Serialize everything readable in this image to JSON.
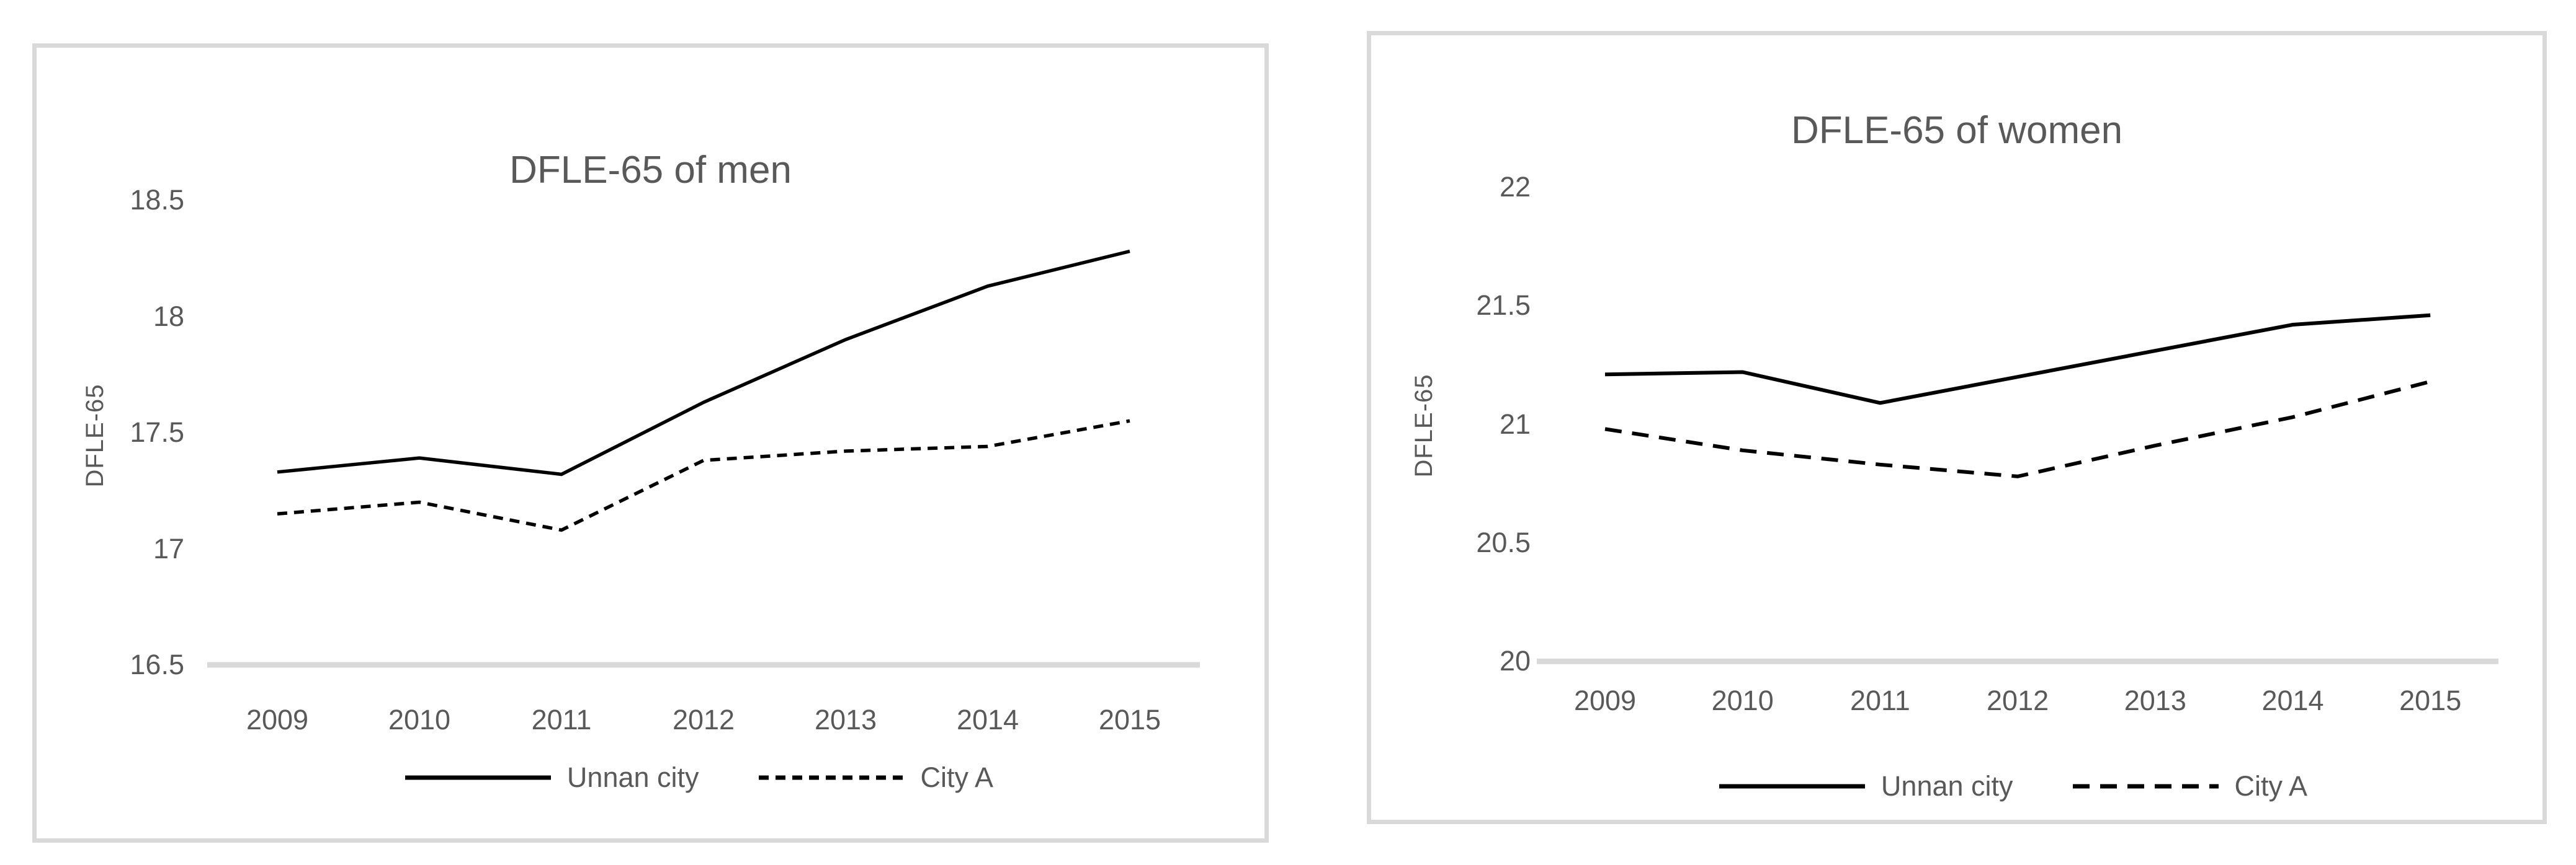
{
  "styles": {
    "background": "#ffffff",
    "line_color": "#000000",
    "text_color": "#595959",
    "border_color": "#d9d9d9",
    "baseline_color": "#d9d9d9"
  },
  "chart_data": [
    {
      "type": "line",
      "title": "DFLE-65 of men",
      "xlabel": "",
      "ylabel": "DFLE-65",
      "categories": [
        "2009",
        "2010",
        "2011",
        "2012",
        "2013",
        "2014",
        "2015"
      ],
      "series": [
        {
          "name": "Unnan city",
          "style": "solid",
          "values": [
            17.33,
            17.39,
            17.32,
            17.63,
            17.9,
            18.13,
            18.28
          ]
        },
        {
          "name": "City A",
          "style": "dashed",
          "values": [
            17.15,
            17.2,
            17.08,
            17.38,
            17.42,
            17.44,
            17.55
          ]
        }
      ],
      "ylim": [
        16.5,
        18.5
      ],
      "y_ticks": [
        18.5,
        18,
        17.5,
        17,
        16.5
      ],
      "y_tick_labels": [
        "18.5",
        "18",
        "17.5",
        "17",
        "16.5"
      ],
      "grid": false,
      "axis_line": "bottom-only",
      "legend_position": "bottom"
    },
    {
      "type": "line",
      "title": "DFLE-65 of women",
      "xlabel": "",
      "ylabel": "DFLE-65",
      "categories": [
        "2009",
        "2010",
        "2011",
        "2012",
        "2013",
        "2014",
        "2015"
      ],
      "series": [
        {
          "name": "Unnan city",
          "style": "solid",
          "values": [
            21.21,
            21.22,
            21.09,
            21.2,
            21.31,
            21.42,
            21.46
          ]
        },
        {
          "name": "City A",
          "style": "dashed",
          "values": [
            20.98,
            20.89,
            20.83,
            20.78,
            20.91,
            21.03,
            21.18
          ]
        }
      ],
      "ylim": [
        20,
        22
      ],
      "y_ticks": [
        22,
        21.5,
        21,
        20.5,
        20
      ],
      "y_tick_labels": [
        "22",
        "21.5",
        "21",
        "20.5",
        "20"
      ],
      "grid": false,
      "axis_line": "bottom-only",
      "legend_position": "bottom"
    }
  ]
}
